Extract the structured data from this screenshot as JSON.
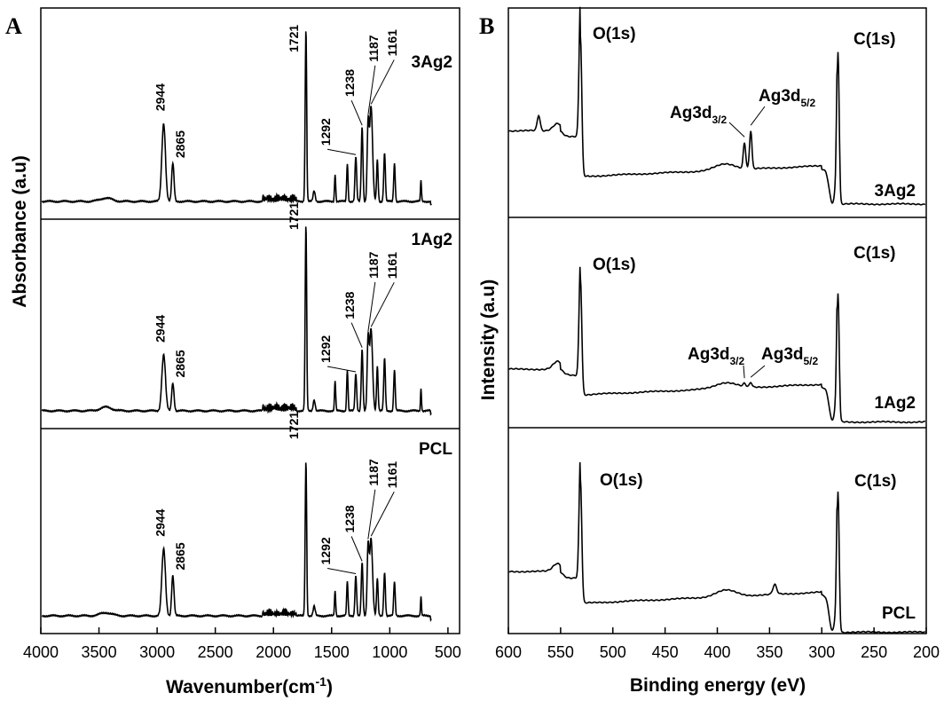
{
  "panelA": {
    "label": "A",
    "ylabel": "Absorbance (a.u)",
    "xlabel": "Wavenumber(cm",
    "xlabel_sup": "-1",
    "xlabel_end": ")"
  },
  "panelB": {
    "label": "B",
    "ylabel": "Intensity (a.u)",
    "xlabel": "Binding energy (eV)",
    "o1s": "O(1s)",
    "c1s": "C(1s)",
    "ag_main": "Ag3d",
    "ag_sub1": "3/2",
    "ag_sub2": "5/2"
  },
  "chart_data": [
    {
      "type": "line",
      "panel": "A",
      "xlabel": "Wavenumber(cm-1)",
      "ylabel": "Absorbance (a.u)",
      "xlim": [
        4000,
        400
      ],
      "xticks": [
        4000,
        3500,
        3000,
        2500,
        2000,
        1500,
        1000,
        500
      ],
      "series": [
        {
          "name": "3Ag2",
          "peaks": [
            {
              "x": 2944,
              "label": "2944",
              "h": 0.45
            },
            {
              "x": 2865,
              "label": "2865",
              "h": 0.22
            },
            {
              "x": 1721,
              "label": "1721",
              "h": 1.0
            },
            {
              "x": 1292,
              "label": "1292",
              "h": 0.26
            },
            {
              "x": 1238,
              "label": "1238",
              "h": 0.43
            },
            {
              "x": 1187,
              "label": "1187",
              "h": 0.42
            },
            {
              "x": 1161,
              "label": "1161",
              "h": 0.55
            }
          ]
        },
        {
          "name": "1Ag2",
          "peaks": [
            {
              "x": 2944,
              "label": "2944",
              "h": 0.3
            },
            {
              "x": 2865,
              "label": "2865",
              "h": 0.15
            },
            {
              "x": 1721,
              "label": "1721",
              "h": 1.0
            },
            {
              "x": 1292,
              "label": "1292",
              "h": 0.2
            },
            {
              "x": 1238,
              "label": "1238",
              "h": 0.33
            },
            {
              "x": 1187,
              "label": "1187",
              "h": 0.36
            },
            {
              "x": 1161,
              "label": "1161",
              "h": 0.44
            }
          ]
        },
        {
          "name": "PCL",
          "peaks": [
            {
              "x": 2944,
              "label": "2944",
              "h": 0.43
            },
            {
              "x": 2865,
              "label": "2865",
              "h": 0.26
            },
            {
              "x": 1721,
              "label": "1721",
              "h": 1.0
            },
            {
              "x": 1292,
              "label": "1292",
              "h": 0.26
            },
            {
              "x": 1238,
              "label": "1238",
              "h": 0.34
            },
            {
              "x": 1187,
              "label": "1187",
              "h": 0.42
            },
            {
              "x": 1161,
              "label": "1161",
              "h": 0.5
            }
          ]
        }
      ]
    },
    {
      "type": "line",
      "panel": "B",
      "xlabel": "Binding energy (eV)",
      "ylabel": "Intensity (a.u)",
      "xlim": [
        600,
        200
      ],
      "xticks": [
        600,
        550,
        500,
        450,
        400,
        350,
        300,
        250,
        200
      ],
      "series": [
        {
          "name": "3Ag2",
          "peaks": [
            {
              "x": 531,
              "label": "O(1s)",
              "h": 0.92
            },
            {
              "x": 374,
              "label": "Ag3d3/2",
              "h": 0.17
            },
            {
              "x": 368,
              "label": "Ag3d5/2",
              "h": 0.25
            },
            {
              "x": 285,
              "label": "C(1s)",
              "h": 1.0
            }
          ]
        },
        {
          "name": "1Ag2",
          "peaks": [
            {
              "x": 531,
              "label": "O(1s)",
              "h": 0.78
            },
            {
              "x": 374,
              "label": "Ag3d3/2",
              "h": 0.02
            },
            {
              "x": 368,
              "label": "Ag3d5/2",
              "h": 0.03
            },
            {
              "x": 285,
              "label": "C(1s)",
              "h": 0.85
            }
          ]
        },
        {
          "name": "PCL",
          "peaks": [
            {
              "x": 531,
              "label": "O(1s)",
              "h": 0.78
            },
            {
              "x": 285,
              "label": "C(1s)",
              "h": 0.88
            }
          ]
        }
      ]
    }
  ]
}
